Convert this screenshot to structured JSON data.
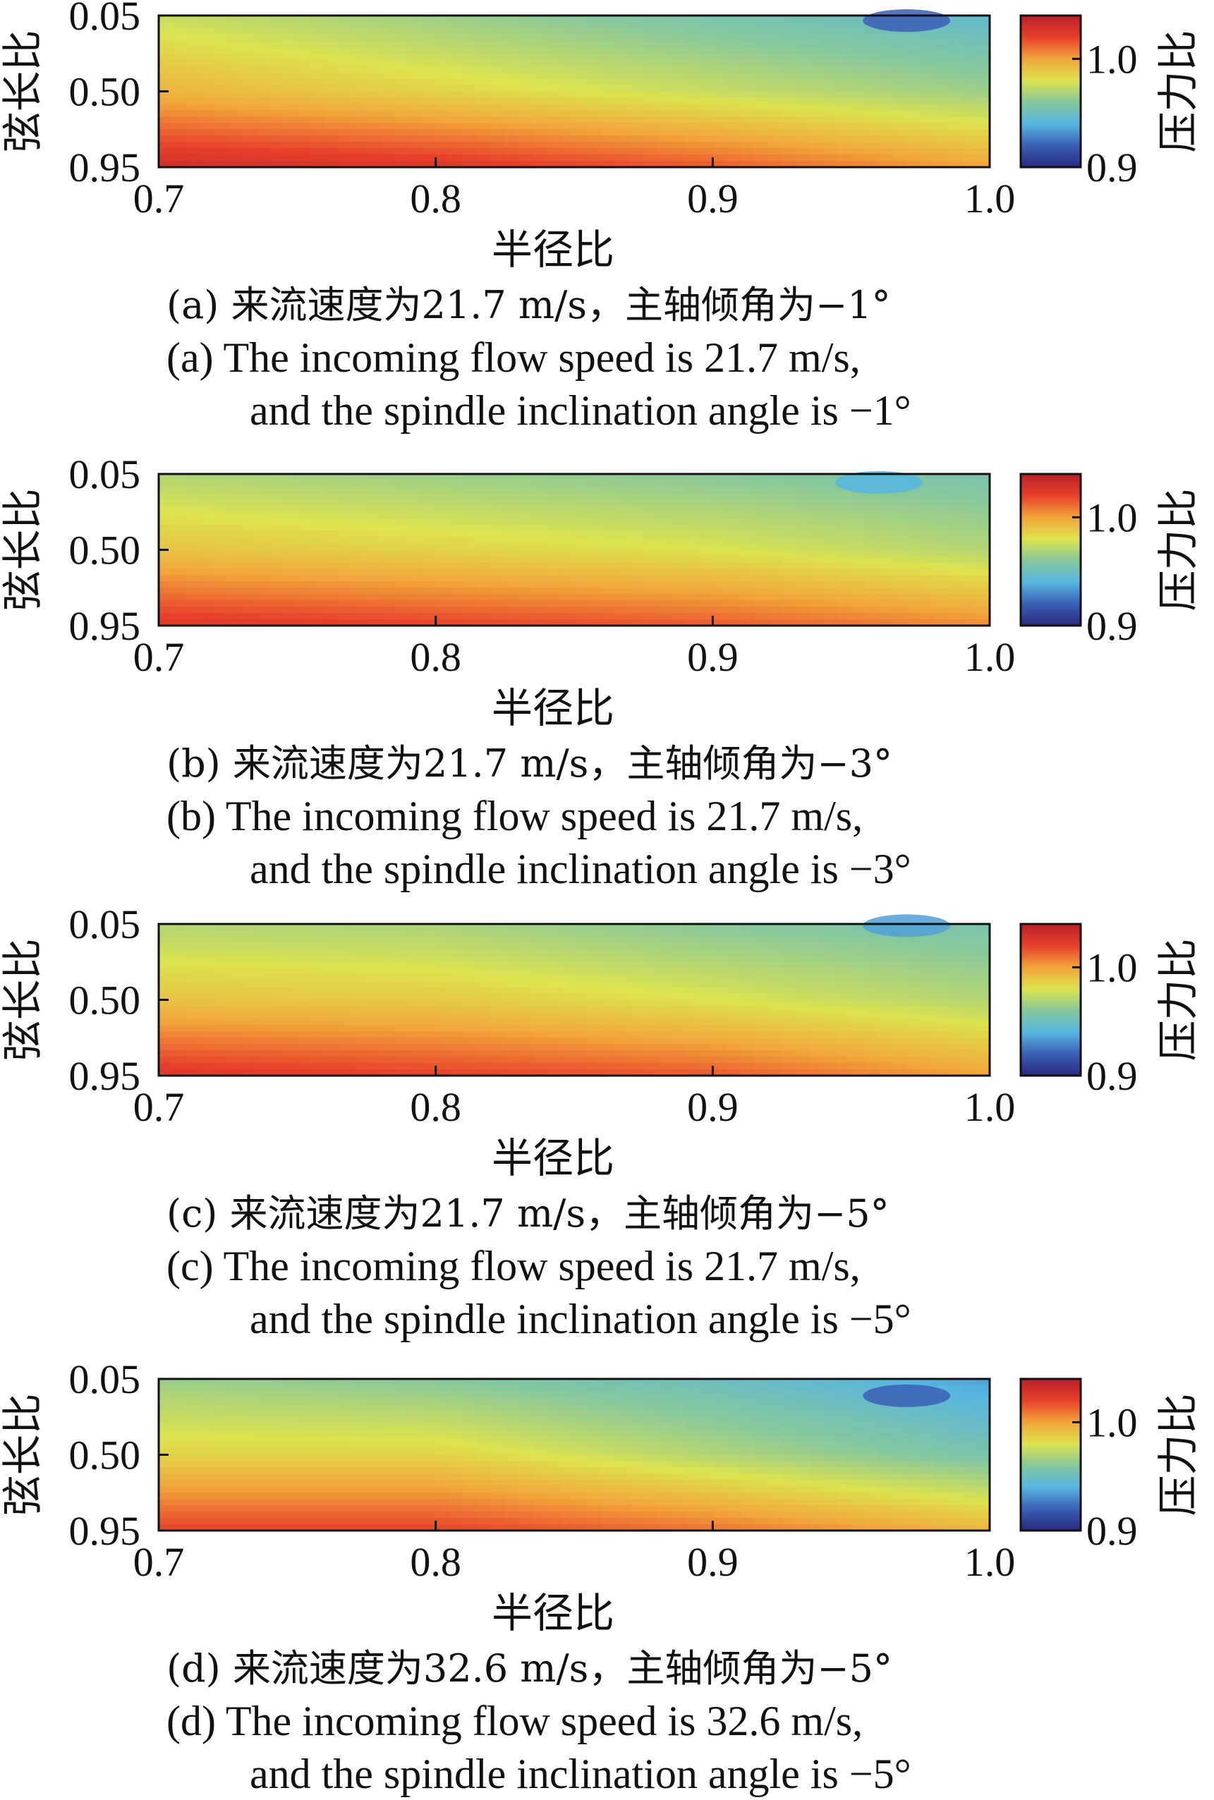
{
  "colors": {
    "colormap": [
      "#282a7e",
      "#3b5fb6",
      "#56b6e0",
      "#86c79c",
      "#dde34e",
      "#f2a43a",
      "#e8402b",
      "#b8202a"
    ],
    "frame": "#111111"
  },
  "chart_data": [
    {
      "type": "heatmap",
      "xlabel": "半径比",
      "ylabel": "弦长比",
      "colorbar_label": "压力比",
      "xticks": [
        "0.7",
        "0.8",
        "0.9",
        "1.0"
      ],
      "yticks": [
        "0.05",
        "0.50",
        "0.95"
      ],
      "colorbar_ticks": [
        "1.0",
        "0.9"
      ],
      "xlim": [
        0.7,
        1.0
      ],
      "ylim": [
        0.05,
        0.95
      ],
      "clim": [
        0.9,
        1.04
      ],
      "x": [
        0.7,
        0.8,
        0.9,
        1.0
      ],
      "y": [
        0.05,
        0.5,
        0.95
      ],
      "z": [
        [
          0.975,
          0.965,
          0.955,
          0.945
        ],
        [
          0.995,
          0.985,
          0.975,
          0.965
        ],
        [
          1.03,
          1.025,
          1.015,
          1.0
        ]
      ],
      "minimum_near": {
        "x": 0.97,
        "y": 0.08,
        "value": 0.92
      },
      "caption_zh": "(a)  来流速度为21.7 m/s，主轴倾角为−1°",
      "caption_en_1": "(a)  The incoming flow speed is 21.7 m/s,",
      "caption_en_2": "and the spindle inclination angle is −1°"
    },
    {
      "type": "heatmap",
      "xlabel": "半径比",
      "ylabel": "弦长比",
      "colorbar_label": "压力比",
      "xticks": [
        "0.7",
        "0.8",
        "0.9",
        "1.0"
      ],
      "yticks": [
        "0.05",
        "0.50",
        "0.95"
      ],
      "colorbar_ticks": [
        "1.0",
        "0.9"
      ],
      "xlim": [
        0.7,
        1.0
      ],
      "ylim": [
        0.05,
        0.95
      ],
      "clim": [
        0.9,
        1.04
      ],
      "x": [
        0.7,
        0.8,
        0.9,
        1.0
      ],
      "y": [
        0.05,
        0.5,
        0.95
      ],
      "z": [
        [
          0.97,
          0.965,
          0.96,
          0.955
        ],
        [
          0.99,
          0.985,
          0.98,
          0.97
        ],
        [
          1.025,
          1.02,
          1.015,
          1.005
        ]
      ],
      "minimum_near": {
        "x": 0.96,
        "y": 0.1,
        "value": 0.94
      },
      "caption_zh": "(b)  来流速度为21.7 m/s，主轴倾角为−3°",
      "caption_en_1": "(b)  The incoming flow speed is 21.7 m/s,",
      "caption_en_2": "and the spindle inclination angle is −3°"
    },
    {
      "type": "heatmap",
      "xlabel": "半径比",
      "ylabel": "弦长比",
      "colorbar_label": "压力比",
      "xticks": [
        "0.7",
        "0.8",
        "0.9",
        "1.0"
      ],
      "yticks": [
        "0.05",
        "0.50",
        "0.95"
      ],
      "colorbar_ticks": [
        "1.0",
        "0.9"
      ],
      "xlim": [
        0.7,
        1.0
      ],
      "ylim": [
        0.05,
        0.95
      ],
      "clim": [
        0.9,
        1.04
      ],
      "x": [
        0.7,
        0.8,
        0.9,
        1.0
      ],
      "y": [
        0.05,
        0.5,
        0.95
      ],
      "z": [
        [
          0.97,
          0.968,
          0.96,
          0.955
        ],
        [
          0.99,
          0.988,
          0.98,
          0.97
        ],
        [
          1.025,
          1.02,
          1.015,
          1.0
        ]
      ],
      "minimum_near": {
        "x": 0.97,
        "y": 0.06,
        "value": 0.935
      },
      "caption_zh": "(c)  来流速度为21.7 m/s，主轴倾角为−5°",
      "caption_en_1": "(c)  The incoming flow speed is 21.7 m/s,",
      "caption_en_2": "and the spindle inclination angle is −5°"
    },
    {
      "type": "heatmap",
      "xlabel": "半径比",
      "ylabel": "弦长比",
      "colorbar_label": "压力比",
      "xticks": [
        "0.7",
        "0.8",
        "0.9",
        "1.0"
      ],
      "yticks": [
        "0.05",
        "0.50",
        "0.95"
      ],
      "colorbar_ticks": [
        "1.0",
        "0.9"
      ],
      "xlim": [
        0.7,
        1.0
      ],
      "ylim": [
        0.05,
        0.95
      ],
      "clim": [
        0.9,
        1.04
      ],
      "x": [
        0.7,
        0.8,
        0.9,
        1.0
      ],
      "y": [
        0.05,
        0.5,
        0.95
      ],
      "z": [
        [
          0.965,
          0.96,
          0.95,
          0.935
        ],
        [
          0.985,
          0.985,
          0.97,
          0.955
        ],
        [
          1.02,
          1.02,
          1.01,
          0.995
        ]
      ],
      "minimum_near": {
        "x": 0.97,
        "y": 0.15,
        "value": 0.92
      },
      "caption_zh": "(d)  来流速度为32.6 m/s，主轴倾角为−5°",
      "caption_en_1": "(d)  The incoming flow speed is 32.6 m/s,",
      "caption_en_2": "and the spindle inclination angle is −5°"
    }
  ]
}
